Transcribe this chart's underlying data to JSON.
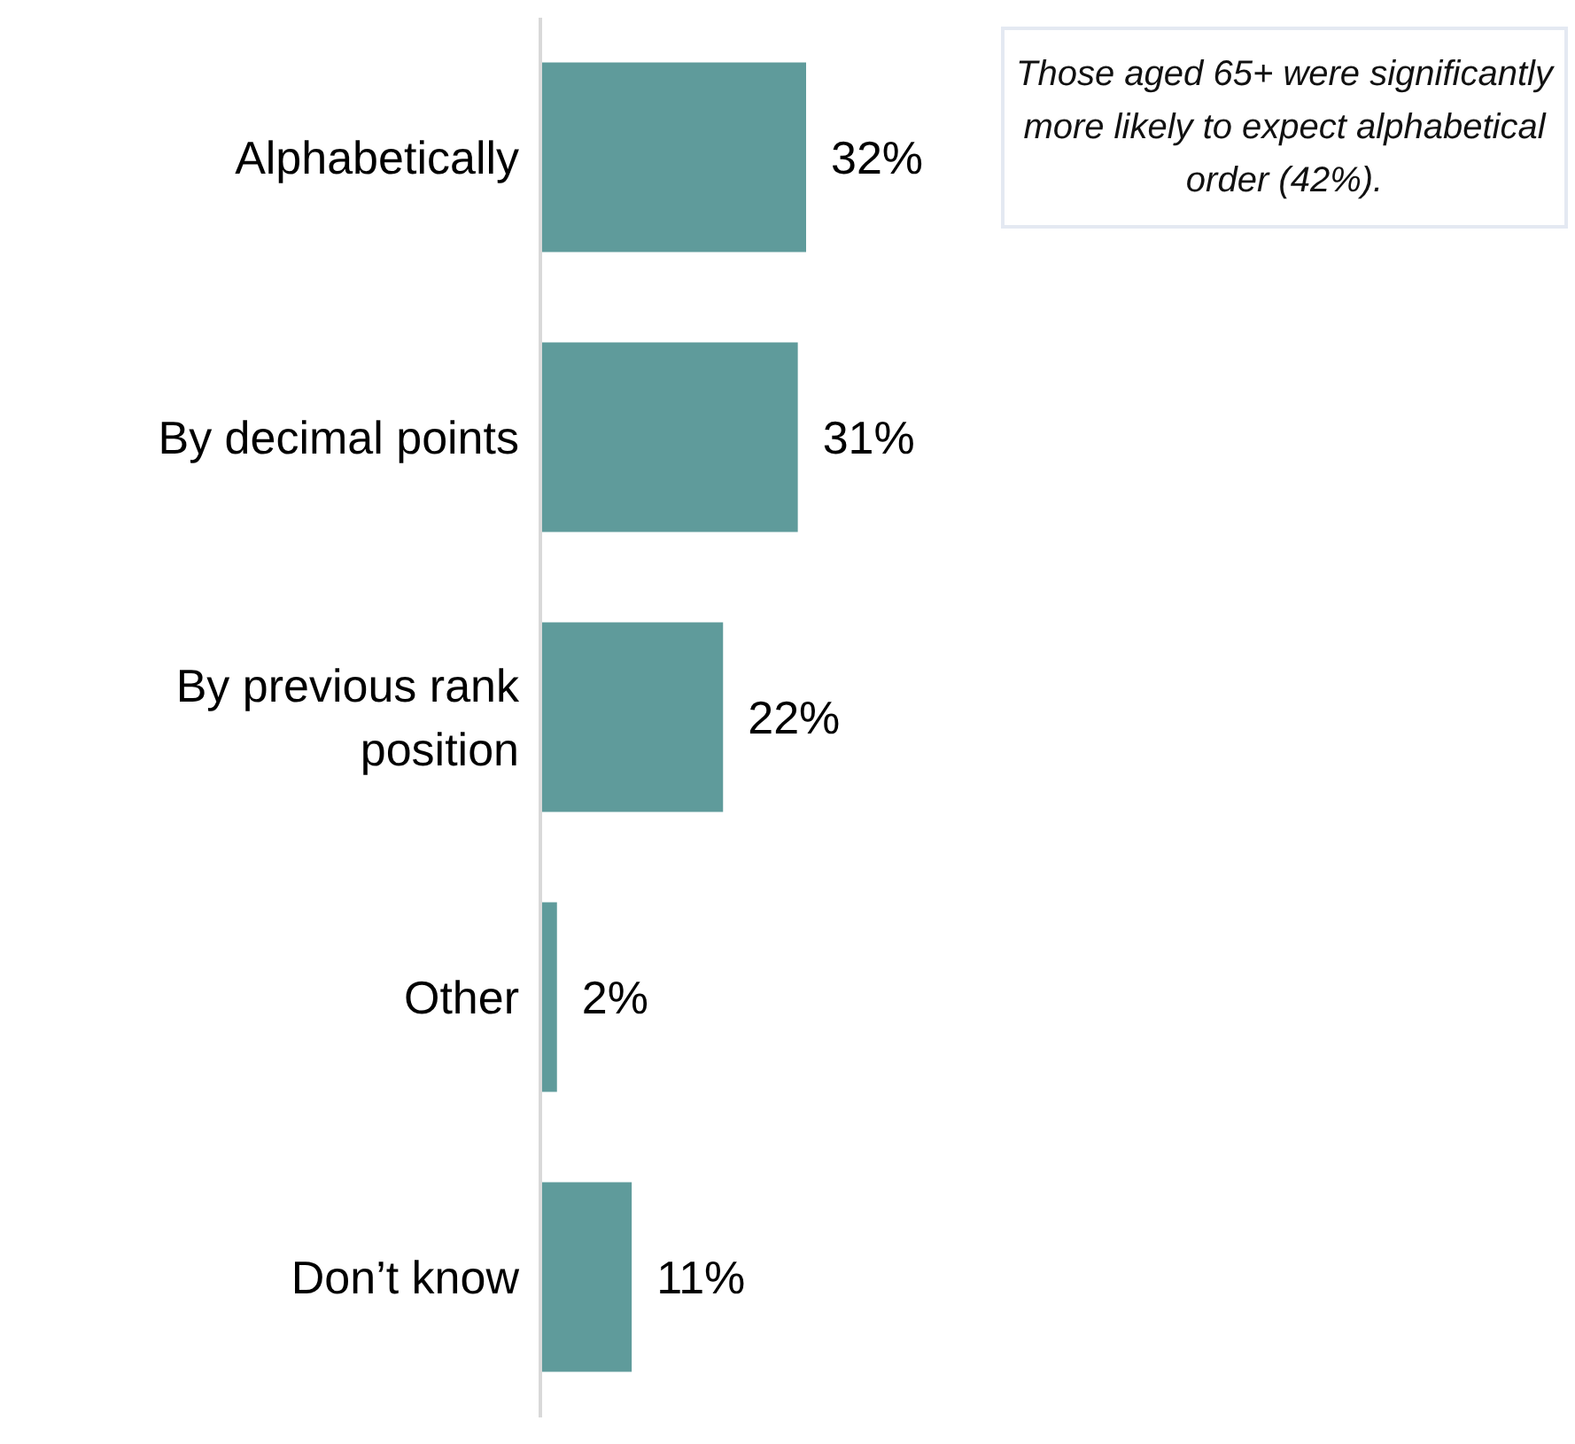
{
  "chart_data": {
    "type": "bar",
    "orientation": "horizontal",
    "categories": [
      "Alphabetically",
      "By decimal points",
      "By previous rank position",
      "Other",
      "Don’t know"
    ],
    "values": [
      32,
      31,
      22,
      2,
      11
    ],
    "value_labels": [
      "32%",
      "31%",
      "22%",
      "2%",
      "11%"
    ],
    "color": "#5f9b9b",
    "tick_labels": "y",
    "annotations": [
      "Those aged 65+ were significantly more likely to expect alphabetical order (42%)."
    ]
  }
}
